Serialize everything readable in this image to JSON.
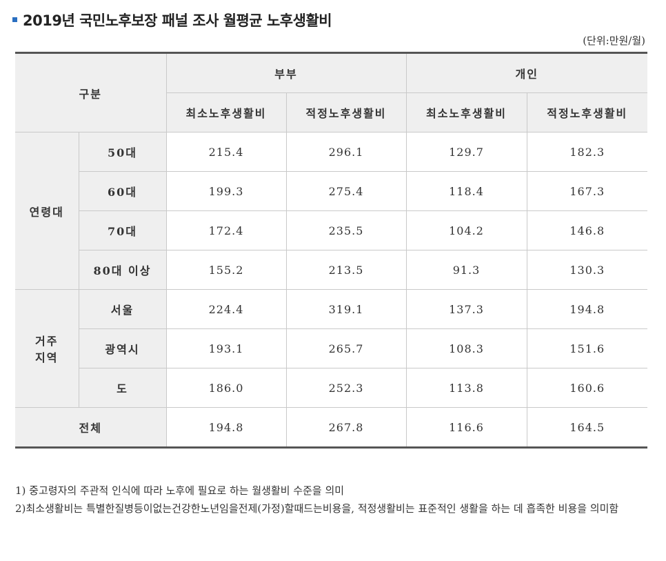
{
  "title": "2019년 국민노후보장 패널 조사 월평균 노후생활비",
  "unit": "(단위:만원/월)",
  "header": {
    "category": "구분",
    "couple": "부부",
    "individual": "개인",
    "min_cost": "최소노후생활비",
    "proper_cost": "적정노후생활비"
  },
  "groups": {
    "age": "연령대",
    "region_line1": "거주",
    "region_line2": "지역"
  },
  "rows": [
    {
      "label": "50대",
      "values": [
        "215.4",
        "296.1",
        "129.7",
        "182.3"
      ]
    },
    {
      "label": "60대",
      "values": [
        "199.3",
        "275.4",
        "118.4",
        "167.3"
      ]
    },
    {
      "label": "70대",
      "values": [
        "172.4",
        "235.5",
        "104.2",
        "146.8"
      ]
    },
    {
      "label": "80대 이상",
      "values": [
        "155.2",
        "213.5",
        "91.3",
        "130.3"
      ]
    },
    {
      "label": "서울",
      "values": [
        "224.4",
        "319.1",
        "137.3",
        "194.8"
      ]
    },
    {
      "label": "광역시",
      "values": [
        "193.1",
        "265.7",
        "108.3",
        "151.6"
      ]
    },
    {
      "label": "도",
      "values": [
        "186.0",
        "252.3",
        "113.8",
        "160.6"
      ]
    }
  ],
  "total": {
    "label": "전체",
    "values": [
      "194.8",
      "267.8",
      "116.6",
      "164.5"
    ]
  },
  "notes": [
    "1) 중고령자의 주관적 인식에 따라 노후에 필요로 하는 월생활비 수준을 의미",
    "2)최소생활비는 특별한질병등이없는건강한노년임을전제(가정)할때드는비용을, 적정생활비는 표준적인 생활을 하는 데 흡족한 비용을 의미함"
  ]
}
